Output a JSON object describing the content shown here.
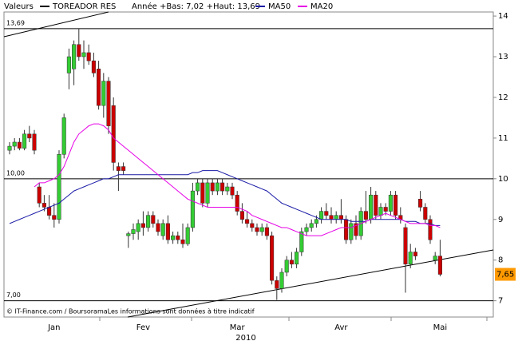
{
  "chart_data": {
    "type": "candlestick",
    "header": "Valeurs",
    "subtitle": "Année +Bas: 7,02 +Haut: 13,69",
    "footer": "© IT-Finance.com / BoursoramaLes informations sont données à titre indicatif",
    "year": "2010",
    "categories": [
      null,
      null,
      null,
      null,
      null,
      null,
      null,
      null,
      null,
      "Jan",
      null,
      null,
      null,
      null,
      null,
      null,
      null,
      null,
      null,
      null,
      null,
      null,
      null,
      null,
      null,
      null,
      null,
      "Fev",
      null,
      null,
      null,
      null,
      null,
      null,
      null,
      null,
      null,
      null,
      null,
      null,
      null,
      null,
      null,
      null,
      null,
      null,
      "Mar",
      null,
      null,
      null,
      null,
      null,
      null,
      null,
      null,
      null,
      null,
      null,
      null,
      null,
      null,
      null,
      null,
      null,
      null,
      null,
      null,
      "Avr",
      null,
      null,
      null,
      null,
      null,
      null,
      null,
      null,
      null,
      null,
      null,
      null,
      null,
      null,
      null,
      null,
      null,
      null,
      null,
      "Mai"
    ],
    "series": [
      {
        "name": "TOREADOR RES",
        "color": "#000000",
        "up_color": "#33cc33",
        "down_color": "#cc0000",
        "open": [
          10.7,
          10.8,
          10.9,
          10.75,
          11.1,
          11.1,
          9.8,
          9.4,
          9.3,
          9.1,
          9.0,
          10.6,
          12.6,
          12.7,
          13.3,
          13.0,
          13.1,
          12.9,
          12.7,
          11.8,
          12.4,
          11.8,
          10.3,
          10.3,
          8.6,
          8.65,
          8.7,
          8.9,
          8.8,
          9.1,
          8.9,
          8.6,
          8.9,
          8.5,
          8.6,
          8.5,
          8.4,
          8.8,
          9.7,
          9.9,
          9.4,
          9.9,
          9.7,
          9.9,
          9.7,
          9.8,
          9.6,
          9.2,
          9.0,
          8.9,
          8.8,
          8.7,
          8.8,
          8.6,
          7.5,
          7.3,
          7.7,
          8.0,
          7.9,
          8.2,
          8.7,
          8.8,
          8.9,
          9.0,
          9.2,
          9.1,
          9.0,
          9.1,
          9.0,
          8.5,
          8.9,
          8.6,
          9.2,
          9.0,
          9.6,
          9.1,
          9.3,
          9.2,
          9.6,
          9.1,
          8.8,
          7.9,
          8.2,
          9.5,
          9.3,
          9.0,
          8.0,
          8.1
        ],
        "high": [
          10.9,
          11.0,
          11.0,
          11.2,
          11.3,
          11.2,
          9.9,
          9.6,
          9.6,
          9.4,
          10.7,
          11.6,
          13.2,
          13.4,
          13.69,
          13.4,
          13.3,
          13.1,
          12.9,
          12.6,
          12.5,
          12.0,
          10.4,
          10.4,
          8.7,
          8.9,
          9.0,
          9.2,
          9.2,
          9.2,
          9.0,
          9.0,
          9.1,
          8.7,
          8.7,
          8.9,
          8.9,
          9.9,
          10.0,
          10.0,
          10.0,
          10.0,
          10.0,
          10.0,
          9.9,
          9.9,
          9.7,
          9.4,
          9.2,
          9.0,
          8.9,
          8.9,
          8.9,
          8.7,
          7.6,
          7.8,
          8.1,
          8.2,
          8.3,
          8.8,
          8.9,
          9.0,
          9.1,
          9.3,
          9.4,
          9.3,
          9.2,
          9.5,
          9.1,
          9.0,
          9.1,
          9.3,
          9.7,
          9.8,
          9.7,
          9.4,
          9.4,
          9.7,
          9.7,
          9.3,
          8.9,
          8.4,
          8.3,
          9.7,
          9.4,
          9.1,
          8.2,
          8.5
        ],
        "low": [
          10.6,
          10.7,
          10.7,
          10.7,
          10.9,
          10.6,
          9.3,
          9.2,
          9.0,
          8.8,
          8.9,
          10.5,
          12.2,
          12.3,
          12.9,
          12.7,
          12.8,
          12.5,
          11.7,
          11.5,
          11.1,
          10.2,
          9.7,
          10.1,
          8.3,
          8.5,
          8.5,
          8.6,
          8.7,
          8.8,
          8.6,
          8.5,
          8.4,
          8.4,
          8.4,
          8.3,
          8.35,
          8.7,
          9.6,
          9.3,
          9.3,
          9.6,
          9.6,
          9.6,
          9.6,
          9.5,
          9.1,
          8.9,
          8.8,
          8.7,
          8.6,
          8.6,
          8.5,
          7.4,
          7.02,
          7.2,
          7.6,
          7.8,
          7.8,
          8.1,
          8.6,
          8.7,
          8.8,
          8.9,
          9.0,
          8.9,
          8.9,
          8.9,
          8.4,
          8.4,
          8.5,
          8.5,
          8.9,
          8.9,
          9.0,
          9.0,
          9.1,
          9.1,
          9.0,
          8.9,
          7.2,
          7.8,
          8.0,
          9.2,
          8.9,
          8.4,
          7.9,
          7.6
        ],
        "close": [
          10.8,
          10.9,
          10.75,
          11.1,
          11.0,
          10.7,
          9.4,
          9.3,
          9.1,
          9.0,
          10.6,
          11.5,
          13.0,
          13.3,
          13.0,
          13.1,
          12.9,
          12.6,
          11.8,
          12.4,
          11.3,
          10.4,
          10.2,
          10.2,
          8.65,
          8.75,
          8.9,
          8.8,
          9.1,
          8.9,
          8.7,
          8.9,
          8.5,
          8.6,
          8.5,
          8.4,
          8.8,
          9.7,
          9.9,
          9.4,
          9.9,
          9.7,
          9.9,
          9.7,
          9.8,
          9.6,
          9.2,
          9.0,
          8.9,
          8.8,
          8.7,
          8.8,
          8.6,
          7.5,
          7.3,
          7.7,
          8.0,
          7.9,
          8.2,
          8.7,
          8.8,
          8.9,
          9.0,
          9.2,
          9.1,
          9.0,
          9.1,
          9.0,
          8.5,
          8.9,
          8.6,
          9.2,
          9.0,
          9.6,
          9.1,
          9.3,
          9.2,
          9.6,
          9.1,
          9.0,
          7.9,
          8.2,
          8.1,
          9.3,
          9.0,
          8.5,
          8.1,
          7.65
        ]
      },
      {
        "name": "MA50",
        "color": "#1a1aa6",
        "type": "line",
        "values": [
          8.9,
          8.95,
          9.0,
          9.05,
          9.1,
          9.15,
          9.2,
          9.25,
          9.3,
          9.35,
          9.4,
          9.5,
          9.6,
          9.7,
          9.75,
          9.8,
          9.85,
          9.9,
          9.95,
          10.0,
          10.0,
          10.05,
          10.1,
          10.1,
          10.1,
          10.1,
          10.1,
          10.1,
          10.1,
          10.1,
          10.1,
          10.1,
          10.1,
          10.1,
          10.1,
          10.1,
          10.1,
          10.15,
          10.15,
          10.2,
          10.2,
          10.2,
          10.2,
          10.15,
          10.1,
          10.05,
          10.0,
          9.95,
          9.9,
          9.85,
          9.8,
          9.75,
          9.7,
          9.6,
          9.5,
          9.4,
          9.35,
          9.3,
          9.25,
          9.2,
          9.15,
          9.1,
          9.05,
          9.0,
          9.0,
          9.0,
          9.0,
          9.0,
          9.0,
          8.95,
          8.95,
          8.95,
          8.95,
          9.0,
          9.0,
          9.0,
          9.0,
          9.0,
          9.0,
          9.0,
          8.95,
          8.95,
          8.95,
          8.9,
          8.9,
          8.9,
          8.85,
          8.85
        ]
      },
      {
        "name": "MA20",
        "color": "#e600e6",
        "type": "line",
        "values": [
          null,
          null,
          null,
          null,
          null,
          9.8,
          9.9,
          9.9,
          9.95,
          10.0,
          10.1,
          10.3,
          10.6,
          10.9,
          11.1,
          11.2,
          11.3,
          11.35,
          11.35,
          11.3,
          11.2,
          11.0,
          10.9,
          10.8,
          10.7,
          10.6,
          10.5,
          10.4,
          10.3,
          10.2,
          10.1,
          10.0,
          9.9,
          9.8,
          9.7,
          9.6,
          9.5,
          9.45,
          9.4,
          9.35,
          9.3,
          9.3,
          9.3,
          9.3,
          9.3,
          9.3,
          9.3,
          9.25,
          9.2,
          9.1,
          9.05,
          9.0,
          8.95,
          8.9,
          8.85,
          8.8,
          8.8,
          8.75,
          8.7,
          8.65,
          8.6,
          8.6,
          8.6,
          8.6,
          8.65,
          8.7,
          8.75,
          8.8,
          8.8,
          8.8,
          8.85,
          8.9,
          8.95,
          9.0,
          9.05,
          9.1,
          9.15,
          9.1,
          9.05,
          9.0,
          8.95,
          8.9,
          8.9,
          8.9,
          8.9,
          8.85,
          8.85,
          8.8
        ]
      }
    ],
    "hlines": [
      {
        "value": 13.69,
        "label": "13,69"
      },
      {
        "value": 10,
        "label": "10,00"
      },
      {
        "value": 7,
        "label": "7,00"
      }
    ],
    "last_price": {
      "value": 7.65,
      "label": "7,65",
      "color": "#ff9900"
    },
    "ylim": [
      6.6,
      14.1
    ],
    "yticks": [
      7,
      8,
      9,
      10,
      11,
      12,
      13,
      14
    ]
  }
}
